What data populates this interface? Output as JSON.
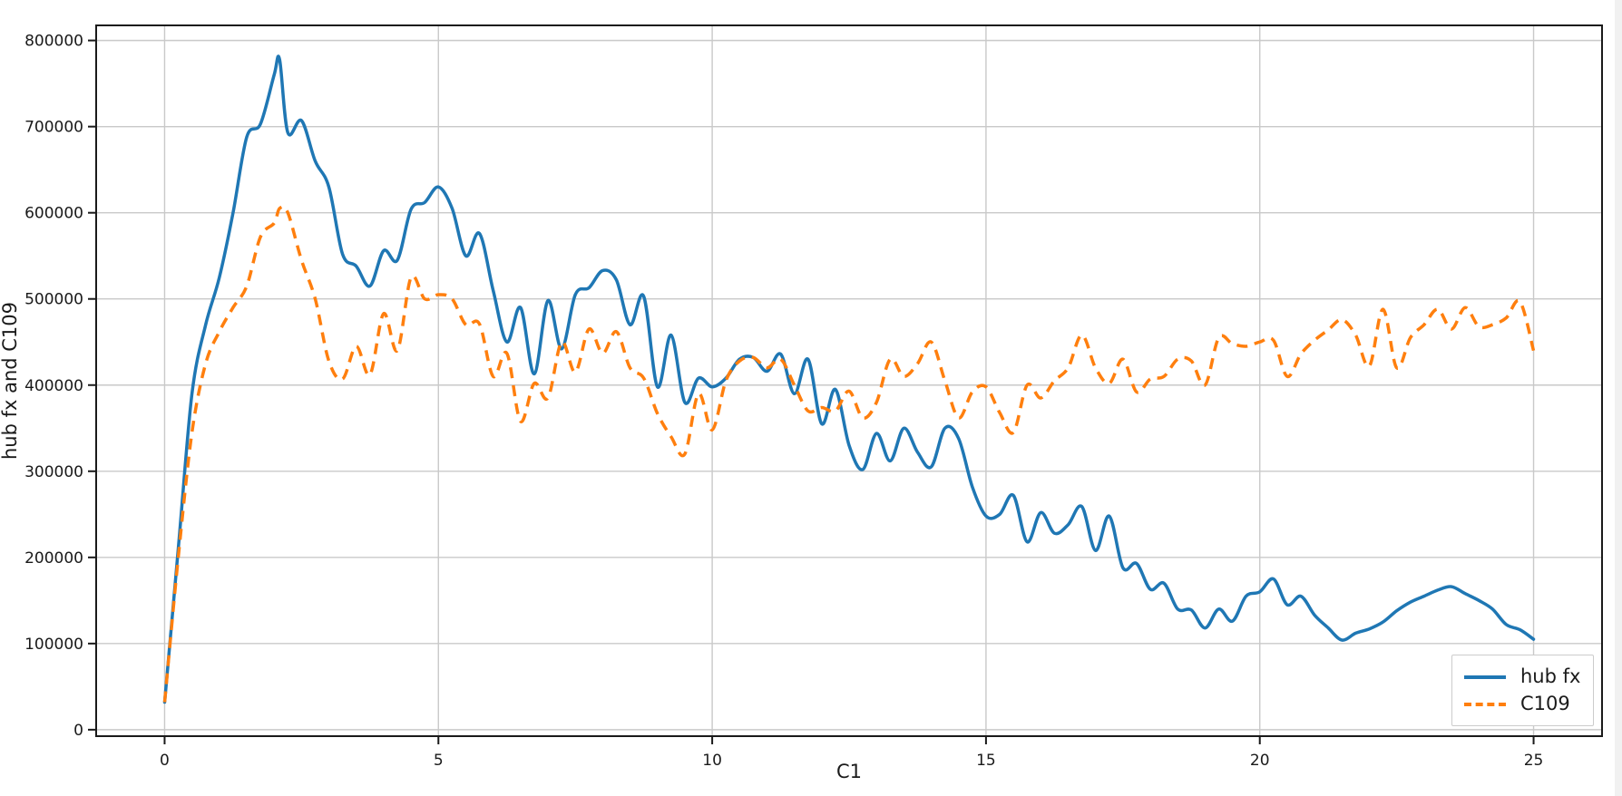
{
  "chart_data": {
    "type": "line",
    "title": "",
    "xlabel": "C1",
    "ylabel": "hub fx and C109",
    "grid": true,
    "legend_position": "lower right",
    "xlim": [
      -1.25,
      26.25
    ],
    "ylim": [
      -7500,
      817500
    ],
    "xticks": [
      0,
      5,
      10,
      15,
      20,
      25
    ],
    "yticks": [
      0,
      100000,
      200000,
      300000,
      400000,
      500000,
      600000,
      700000,
      800000
    ],
    "colors": {
      "grid": "#c9c9c9",
      "spine": "#1a1a1a",
      "text": "#1a1a1a"
    },
    "x": [
      0,
      0.25,
      0.5,
      0.75,
      1,
      1.25,
      1.5,
      1.75,
      2,
      2.1,
      2.25,
      2.5,
      2.75,
      3,
      3.25,
      3.5,
      3.75,
      4,
      4.25,
      4.5,
      4.75,
      5,
      5.25,
      5.5,
      5.75,
      6,
      6.25,
      6.5,
      6.75,
      7,
      7.25,
      7.5,
      7.75,
      8,
      8.25,
      8.5,
      8.75,
      9,
      9.25,
      9.5,
      9.75,
      10,
      10.25,
      10.5,
      10.75,
      11,
      11.25,
      11.5,
      11.75,
      12,
      12.25,
      12.5,
      12.75,
      13,
      13.25,
      13.5,
      13.75,
      14,
      14.25,
      14.5,
      14.75,
      15,
      15.25,
      15.5,
      15.75,
      16,
      16.25,
      16.5,
      16.75,
      17,
      17.25,
      17.5,
      17.75,
      18,
      18.25,
      18.5,
      18.75,
      19,
      19.25,
      19.5,
      19.75,
      20,
      20.25,
      20.5,
      20.75,
      21,
      21.25,
      21.5,
      21.75,
      22,
      22.25,
      22.5,
      22.75,
      23,
      23.25,
      23.5,
      23.75,
      24,
      24.25,
      24.5,
      24.75,
      25
    ],
    "series": [
      {
        "name": "hub fx",
        "color": "#1f77b4",
        "style": "solid",
        "line_width": 3.5,
        "values": [
          32000,
          210000,
          390000,
          470000,
          525000,
          600000,
          688000,
          703000,
          760000,
          778000,
          693000,
          707000,
          660000,
          630000,
          552000,
          538000,
          515000,
          556000,
          545000,
          604000,
          612000,
          630000,
          605000,
          550000,
          576000,
          510000,
          450000,
          490000,
          413000,
          498000,
          442000,
          505000,
          513000,
          533000,
          522000,
          470000,
          503000,
          398000,
          458000,
          380000,
          408000,
          398000,
          408000,
          430000,
          432000,
          416000,
          436000,
          390000,
          430000,
          355000,
          395000,
          330000,
          302000,
          344000,
          312000,
          350000,
          322000,
          305000,
          350000,
          338000,
          282000,
          248000,
          250000,
          272000,
          218000,
          252000,
          228000,
          238000,
          259000,
          208000,
          248000,
          188000,
          193000,
          163000,
          170000,
          140000,
          139000,
          118000,
          140000,
          126000,
          155000,
          160000,
          175000,
          145000,
          155000,
          133000,
          118000,
          104000,
          112000,
          117000,
          125000,
          138000,
          148000,
          155000,
          162000,
          166000,
          158000,
          150000,
          140000,
          122000,
          116000,
          105000
        ]
      },
      {
        "name": "C109",
        "color": "#ff7f0e",
        "style": "dashed",
        "line_width": 3.5,
        "values": [
          32000,
          200000,
          345000,
          425000,
          462000,
          490000,
          515000,
          572000,
          588000,
          605000,
          600000,
          545000,
          500000,
          428000,
          407000,
          445000,
          412000,
          483000,
          440000,
          525000,
          500000,
          505000,
          500000,
          470000,
          471000,
          410000,
          437000,
          358000,
          402000,
          385000,
          450000,
          415000,
          465000,
          437000,
          462000,
          420000,
          408000,
          367000,
          340000,
          320000,
          390000,
          348000,
          405000,
          428000,
          432000,
          420000,
          430000,
          400000,
          370000,
          374000,
          370000,
          393000,
          362000,
          380000,
          430000,
          410000,
          425000,
          450000,
          405000,
          362000,
          392000,
          398000,
          368000,
          345000,
          400000,
          385000,
          405000,
          420000,
          458000,
          420000,
          402000,
          430000,
          392000,
          407000,
          410000,
          430000,
          428000,
          400000,
          455000,
          448000,
          445000,
          450000,
          452000,
          410000,
          436000,
          452000,
          464000,
          476000,
          458000,
          422000,
          488000,
          420000,
          455000,
          470000,
          488000,
          465000,
          490000,
          468000,
          470000,
          478000,
          497000,
          440000
        ]
      }
    ]
  }
}
